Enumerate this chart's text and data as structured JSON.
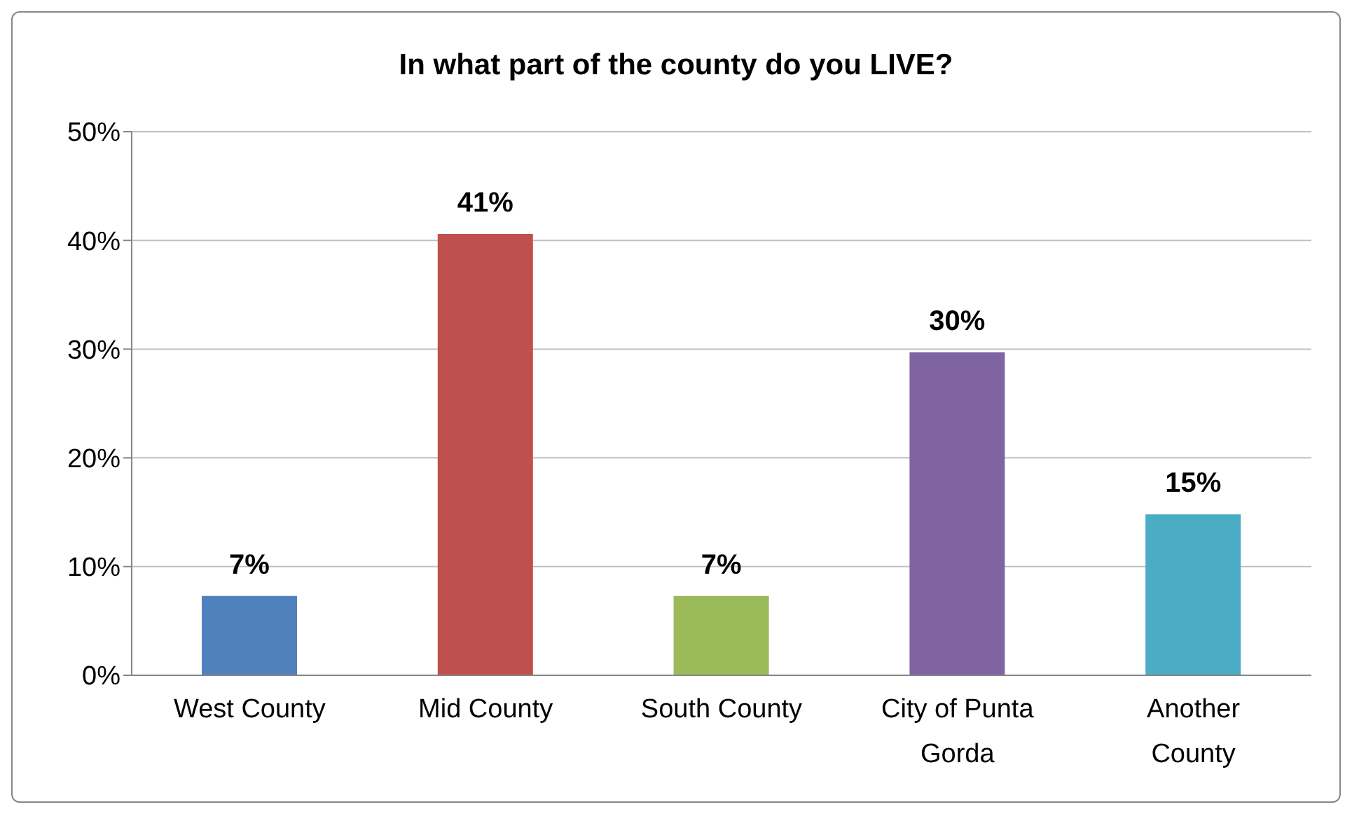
{
  "chart_data": {
    "type": "bar",
    "title": "In what part of the county do you LIVE?",
    "categories": [
      "West County",
      "Mid County",
      "South County",
      "City of Punta Gorda",
      "Another County"
    ],
    "values": [
      7.3,
      40.6,
      7.3,
      29.7,
      14.8
    ],
    "value_labels": [
      "7%",
      "41%",
      "7%",
      "30%",
      "15%"
    ],
    "colors": [
      "#4f81bd",
      "#c0504d",
      "#9bbb59",
      "#8064a2",
      "#4bacc6"
    ],
    "ylim": [
      0,
      50
    ],
    "yticks": [
      {
        "value": 0,
        "label": "0%"
      },
      {
        "value": 10,
        "label": "10%"
      },
      {
        "value": 20,
        "label": "20%"
      },
      {
        "value": 30,
        "label": "30%"
      },
      {
        "value": 40,
        "label": "40%"
      },
      {
        "value": 50,
        "label": "50%"
      }
    ],
    "grid": "y"
  }
}
